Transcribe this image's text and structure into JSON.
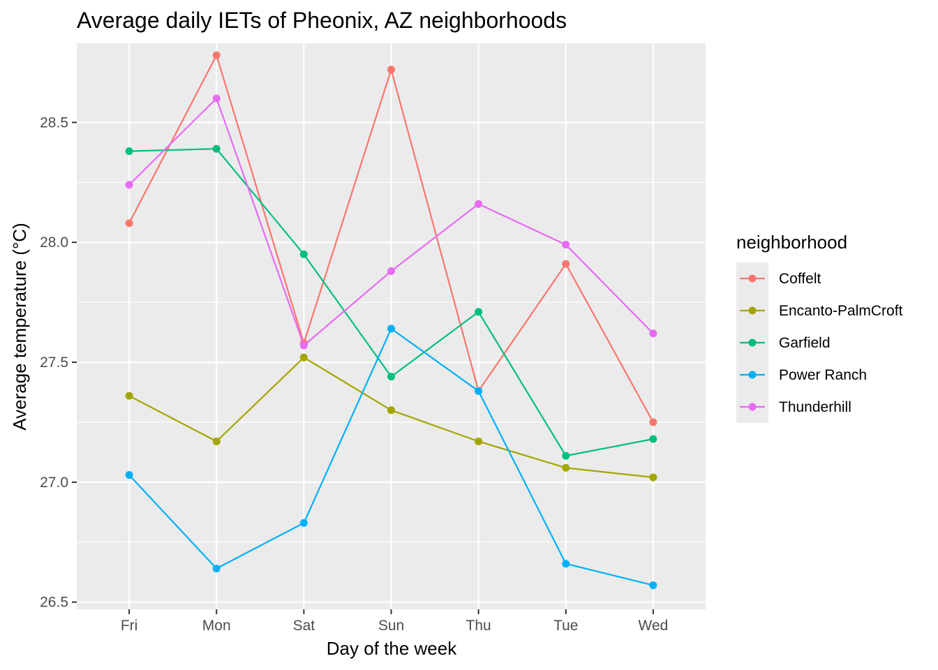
{
  "chart_data": {
    "type": "line",
    "title": "Average daily IETs of Pheonix, AZ neighborhoods",
    "xlabel": "Day of the week",
    "ylabel": "Average temperature (°C)",
    "categories": [
      "Fri",
      "Mon",
      "Sat",
      "Sun",
      "Thu",
      "Tue",
      "Wed"
    ],
    "ylim": [
      26.47,
      28.83
    ],
    "yticks": [
      26.5,
      27.0,
      27.5,
      28.0,
      28.5
    ],
    "ytick_labels": [
      "26.5",
      "27.0",
      "27.5",
      "28.0",
      "28.5"
    ],
    "grid": true,
    "legend": {
      "title": "neighborhood",
      "position": "right"
    },
    "series": [
      {
        "name": "Coffelt",
        "color": "#F8766D",
        "values": [
          28.08,
          28.78,
          27.58,
          28.72,
          27.38,
          27.91,
          27.25
        ]
      },
      {
        "name": "Encanto-PalmCroft",
        "color": "#A3A500",
        "values": [
          27.36,
          27.17,
          27.52,
          27.3,
          27.17,
          27.06,
          27.02
        ]
      },
      {
        "name": "Garfield",
        "color": "#00BF7D",
        "values": [
          28.38,
          28.39,
          27.95,
          27.44,
          27.71,
          27.11,
          27.18
        ]
      },
      {
        "name": "Power Ranch",
        "color": "#00B0F6",
        "values": [
          27.03,
          26.64,
          26.83,
          27.64,
          27.38,
          26.66,
          26.57
        ]
      },
      {
        "name": "Thunderhill",
        "color": "#E76BF3",
        "values": [
          28.24,
          28.6,
          27.57,
          27.88,
          28.16,
          27.99,
          27.62
        ]
      }
    ]
  }
}
